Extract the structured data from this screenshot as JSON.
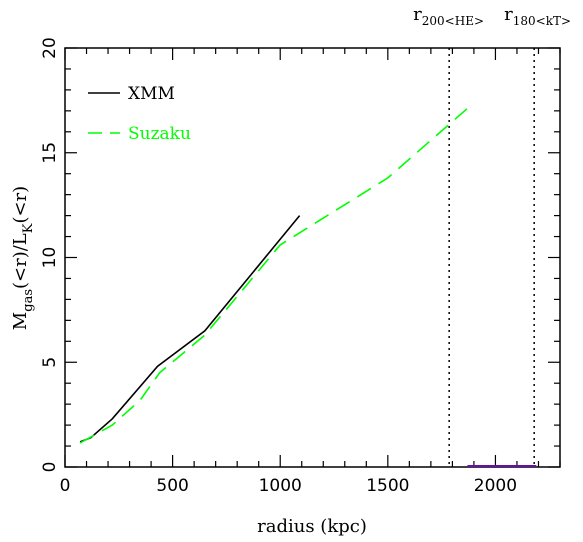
{
  "chart_data": {
    "type": "line",
    "xlabel": "radius (kpc)",
    "ylabel": {
      "base": "M",
      "sub1": "gas",
      "mid": "(<r)/L",
      "sub2": "K",
      "tail": "(<r)"
    },
    "xlim": [
      0,
      2300
    ],
    "ylim": [
      0,
      20
    ],
    "x_ticks": [
      0,
      500,
      1000,
      1500,
      2000
    ],
    "x_tick_labels": [
      "0",
      "500",
      "1000",
      "1500",
      "2000"
    ],
    "y_ticks": [
      0,
      5,
      10,
      15,
      20
    ],
    "y_tick_labels": [
      "0",
      "5",
      "10",
      "15",
      "20"
    ],
    "legend_position": "top-left",
    "series": [
      {
        "name": "XMM",
        "color": "#000000",
        "style": "solid",
        "points": [
          [
            70,
            1.2
          ],
          [
            120,
            1.4
          ],
          [
            220,
            2.3
          ],
          [
            430,
            4.8
          ],
          [
            650,
            6.5
          ],
          [
            1090,
            12.0
          ]
        ]
      },
      {
        "name": "Suzaku",
        "color": "#00ff00",
        "style": "dashed",
        "points": [
          [
            70,
            1.15
          ],
          [
            220,
            2.0
          ],
          [
            350,
            3.2
          ],
          [
            440,
            4.5
          ],
          [
            650,
            6.3
          ],
          [
            1000,
            10.6
          ],
          [
            1500,
            13.8
          ],
          [
            1890,
            17.3
          ]
        ]
      }
    ],
    "vlines": [
      {
        "x": 1785,
        "label": {
          "main": "r",
          "sub": "200<HE>"
        },
        "style": "dotted"
      },
      {
        "x": 2180,
        "label": {
          "main": "r",
          "sub": "180<kT>"
        },
        "style": "dotted"
      }
    ],
    "baseline_segment": {
      "x_start": 1870,
      "x_end": 2190,
      "y": 0,
      "color": "#6a0dad"
    }
  }
}
